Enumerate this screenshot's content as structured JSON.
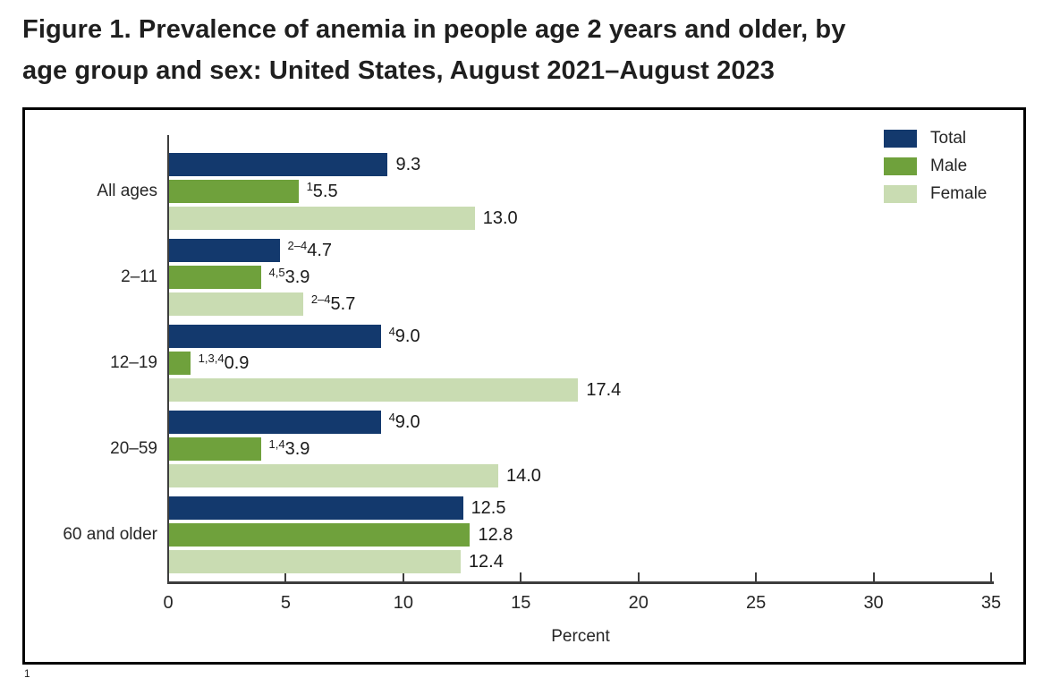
{
  "figure": {
    "title_lines": [
      "Figure 1. Prevalence of anemia in people age 2 years and older, by",
      "age group and sex: United States, August 2021–August 2023"
    ],
    "footnote_marker": "1"
  },
  "chart_data": {
    "type": "bar",
    "orientation": "horizontal",
    "title": "Figure 1. Prevalence of anemia in people age 2 years and older, by age group and sex: United States, August 2021–August 2023",
    "xlabel": "Percent",
    "xlim": [
      0,
      35
    ],
    "xticks": [
      0,
      5,
      10,
      15,
      20,
      25,
      30,
      35
    ],
    "grid": false,
    "legend_position": "top-right",
    "categories": [
      "All ages",
      "2–11",
      "12–19",
      "20–59",
      "60 and older"
    ],
    "series": [
      {
        "name": "Total",
        "color": "#13396d",
        "values": [
          9.3,
          4.7,
          9.0,
          9.0,
          12.5
        ],
        "label_prefixes": [
          "",
          "2–4",
          "4",
          "4",
          ""
        ]
      },
      {
        "name": "Male",
        "color": "#6fa13c",
        "values": [
          5.5,
          3.9,
          0.9,
          3.9,
          12.8
        ],
        "label_prefixes": [
          "1",
          "4,5",
          "1,3,4",
          "1,4",
          ""
        ]
      },
      {
        "name": "Female",
        "color": "#c9dcb2",
        "values": [
          13.0,
          5.7,
          17.4,
          14.0,
          12.4
        ],
        "label_prefixes": [
          "",
          "2–4",
          "",
          "",
          ""
        ]
      }
    ],
    "axis_color": "#3d3d3d"
  }
}
